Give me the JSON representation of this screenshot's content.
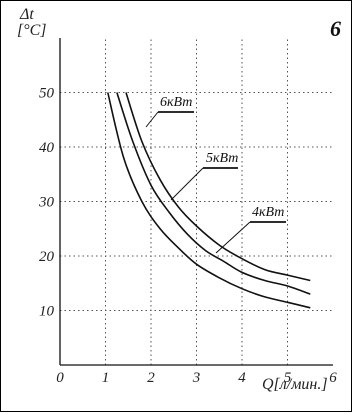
{
  "panel_number": "6",
  "chart_data": {
    "type": "line",
    "title": "",
    "ylabel_line1": "Δt",
    "ylabel_line2": "[°C]",
    "xlabel": "Q[л/мин.]",
    "xlim": [
      0,
      6
    ],
    "ylim": [
      0,
      60
    ],
    "x_ticks": [
      "0",
      "1",
      "2",
      "3",
      "4",
      "5",
      "6"
    ],
    "y_ticks": [
      "10",
      "20",
      "30",
      "40",
      "50"
    ],
    "grid": true,
    "series": [
      {
        "name": "6кВт",
        "x": [
          1.45,
          1.8,
          2.2,
          2.6,
          3.0,
          3.5,
          4.0,
          4.5,
          5.0,
          5.5
        ],
        "y": [
          50,
          41,
          34,
          29,
          25.5,
          22,
          19.5,
          17.5,
          16.5,
          15.5
        ]
      },
      {
        "name": "5кВт",
        "x": [
          1.25,
          1.6,
          2.0,
          2.4,
          2.8,
          3.2,
          3.6,
          4.0,
          4.5,
          5.0,
          5.5
        ],
        "y": [
          50,
          41,
          33,
          28,
          24,
          21,
          19,
          17,
          15.5,
          14.5,
          13
        ]
      },
      {
        "name": "4кВт",
        "x": [
          1.05,
          1.4,
          1.8,
          2.2,
          2.6,
          3.0,
          3.5,
          4.0,
          4.5,
          5.0,
          5.5
        ],
        "y": [
          50,
          38,
          30,
          25,
          21.5,
          18.5,
          16,
          14,
          12.5,
          11.5,
          10.5
        ]
      }
    ]
  }
}
